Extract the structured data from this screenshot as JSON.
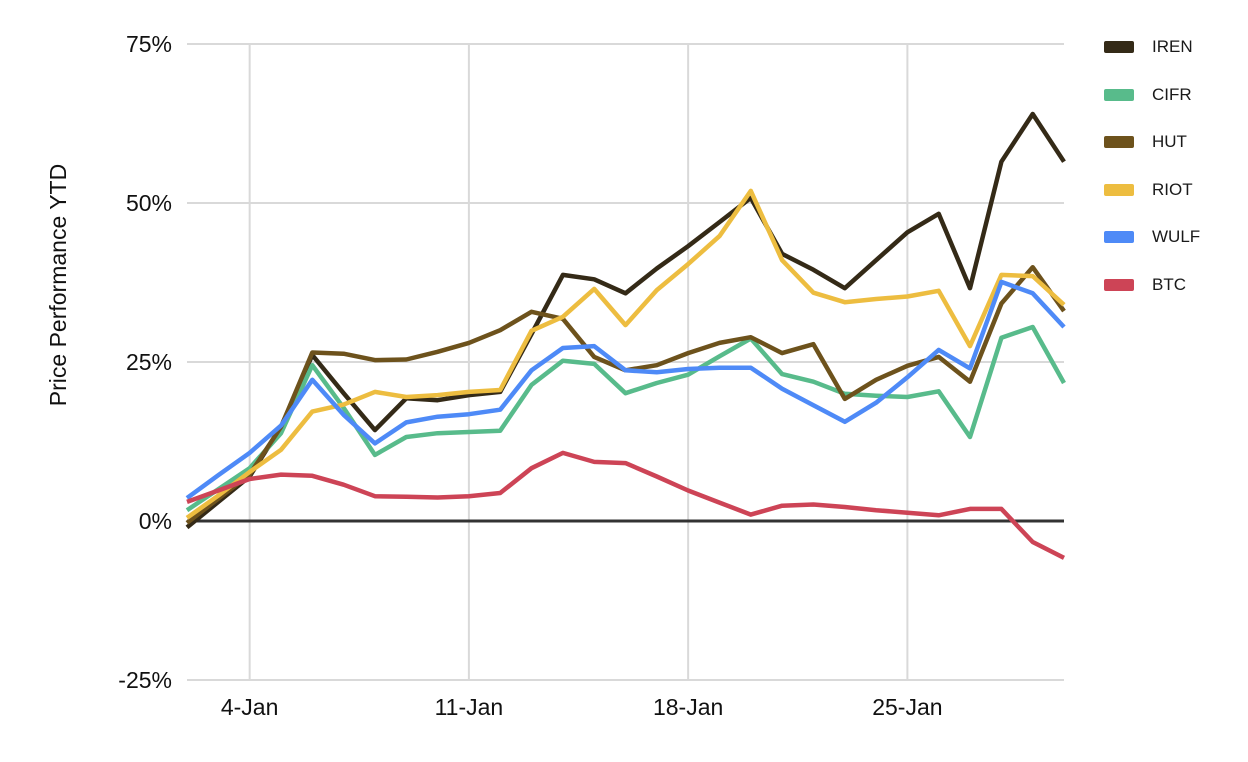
{
  "axis_style": {
    "grid_color": "#d9d9d9",
    "baseline_color": "#333333",
    "label_color": "#111111"
  },
  "chart_data": {
    "type": "line",
    "title": "",
    "xlabel": "",
    "ylabel": "Price Performance YTD",
    "ylim": [
      -25,
      75
    ],
    "grid": true,
    "legend_position": "right",
    "y_ticks": [
      75,
      50,
      25,
      0,
      -25
    ],
    "y_tick_labels": [
      "75%",
      "50%",
      "25%",
      "0%",
      "-25%"
    ],
    "x_ticks": [
      {
        "label": "4-Jan",
        "index": 2
      },
      {
        "label": "11-Jan",
        "index": 9
      },
      {
        "label": "18-Jan",
        "index": 16
      },
      {
        "label": "25-Jan",
        "index": 23
      }
    ],
    "x": [
      "2-Jan",
      "3-Jan",
      "4-Jan",
      "5-Jan",
      "6-Jan",
      "7-Jan",
      "8-Jan",
      "9-Jan",
      "10-Jan",
      "11-Jan",
      "12-Jan",
      "13-Jan",
      "14-Jan",
      "15-Jan",
      "16-Jan",
      "17-Jan",
      "18-Jan",
      "19-Jan",
      "20-Jan",
      "21-Jan",
      "22-Jan",
      "23-Jan",
      "24-Jan",
      "25-Jan",
      "26-Jan",
      "27-Jan",
      "28-Jan",
      "29-Jan",
      "30-Jan"
    ],
    "series": [
      {
        "name": "IREN",
        "color": "#342a17",
        "values": [
          -1.0,
          3.0,
          7.0,
          14.8,
          26.1,
          20.1,
          14.3,
          19.3,
          19.0,
          19.8,
          20.3,
          29.4,
          38.7,
          38.0,
          35.8,
          39.7,
          43.2,
          47.0,
          50.8,
          42.0,
          39.5,
          36.6,
          41.0,
          45.4,
          48.3,
          36.6,
          56.5,
          64.0,
          56.5
        ]
      },
      {
        "name": "CIFR",
        "color": "#58bb8b",
        "values": [
          1.7,
          5.0,
          8.3,
          13.8,
          24.5,
          17.8,
          10.4,
          13.2,
          13.8,
          14.0,
          14.2,
          21.4,
          25.2,
          24.7,
          20.1,
          21.7,
          23.0,
          25.9,
          28.7,
          23.1,
          21.9,
          20.0,
          19.7,
          19.5,
          20.4,
          13.2,
          28.8,
          30.5,
          21.7
        ]
      },
      {
        "name": "HUT",
        "color": "#6d521c",
        "values": [
          -0.3,
          3.5,
          7.3,
          14.8,
          26.5,
          26.3,
          25.3,
          25.4,
          26.6,
          28.0,
          30.0,
          32.9,
          31.8,
          25.8,
          23.7,
          24.5,
          26.4,
          28.0,
          28.9,
          26.4,
          27.8,
          19.2,
          22.2,
          24.4,
          25.8,
          21.9,
          34.2,
          39.9,
          33.0
        ]
      },
      {
        "name": "RIOT",
        "color": "#edbd40",
        "values": [
          0.5,
          4.0,
          7.7,
          11.2,
          17.2,
          18.3,
          20.3,
          19.5,
          19.8,
          20.3,
          20.6,
          29.9,
          32.1,
          36.5,
          30.8,
          36.3,
          40.4,
          44.8,
          51.9,
          41.0,
          35.9,
          34.4,
          34.9,
          35.3,
          36.2,
          27.5,
          38.7,
          38.5,
          34.0
        ]
      },
      {
        "name": "WULF",
        "color": "#4e8af7",
        "values": [
          3.6,
          7.2,
          10.7,
          15.0,
          22.2,
          16.7,
          12.2,
          15.5,
          16.4,
          16.8,
          17.5,
          23.7,
          27.2,
          27.5,
          23.7,
          23.4,
          23.9,
          24.1,
          24.1,
          20.8,
          18.2,
          15.6,
          18.6,
          22.6,
          26.9,
          24.0,
          37.6,
          35.8,
          30.5
        ]
      },
      {
        "name": "BTC",
        "color": "#cd4456",
        "values": [
          3.0,
          4.8,
          6.6,
          7.3,
          7.1,
          5.7,
          3.9,
          3.8,
          3.7,
          3.9,
          4.4,
          8.3,
          10.7,
          9.3,
          9.1,
          7.0,
          4.8,
          2.9,
          1.0,
          2.4,
          2.6,
          2.2,
          1.7,
          1.3,
          0.9,
          1.9,
          1.9,
          -3.3,
          -5.8
        ]
      }
    ]
  }
}
